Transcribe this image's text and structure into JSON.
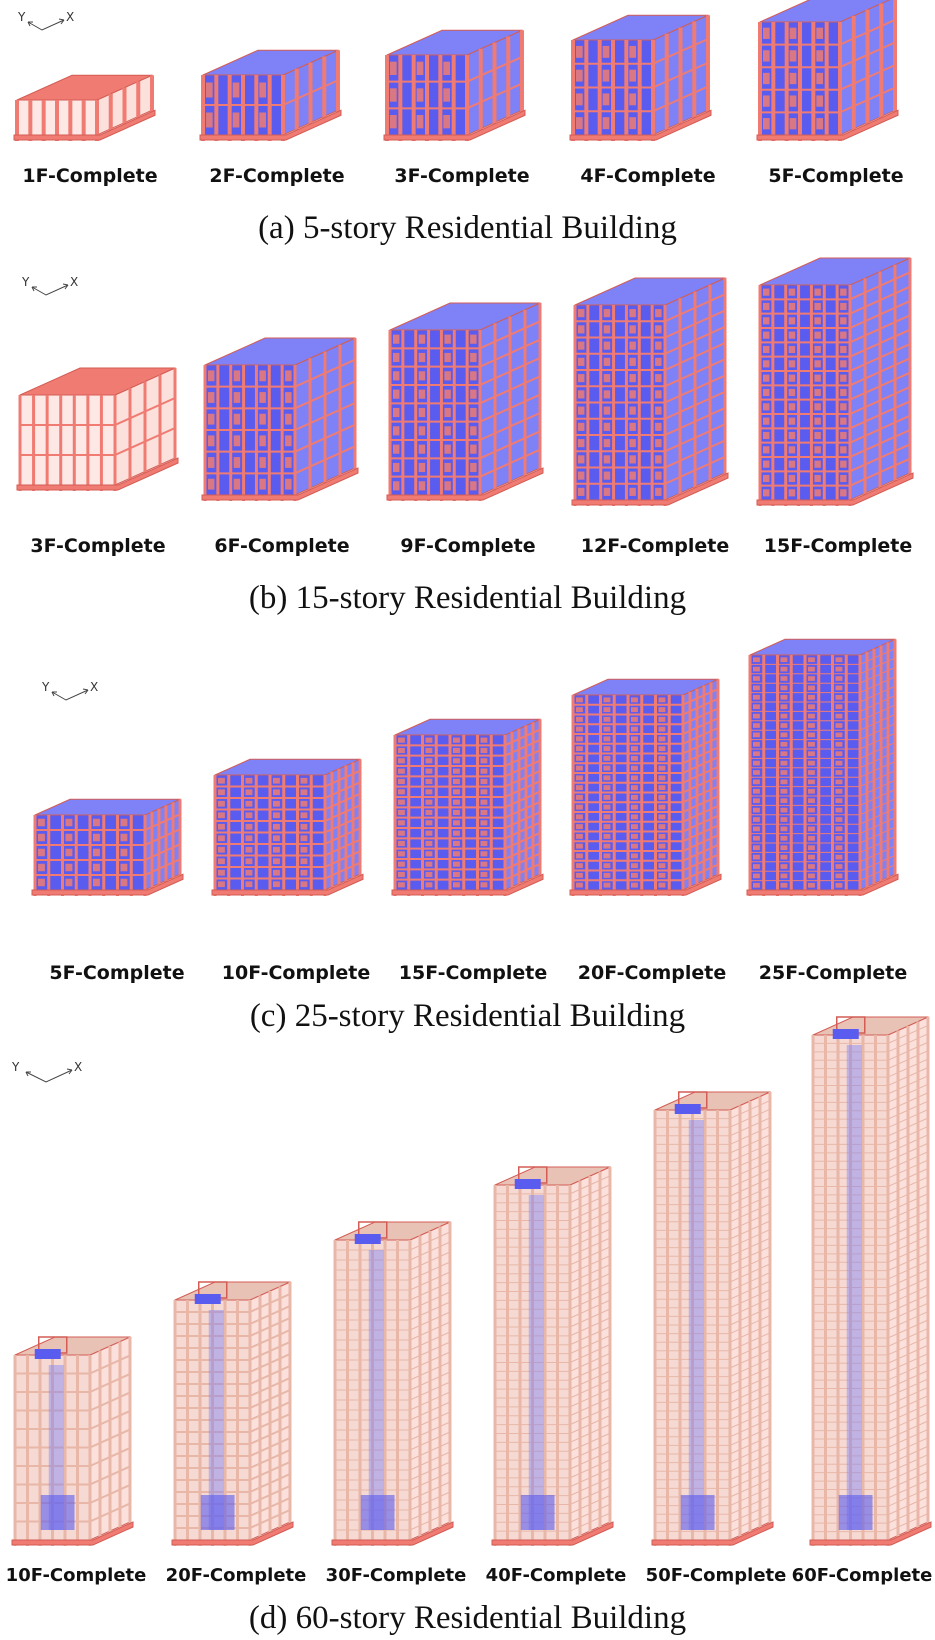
{
  "axes": {
    "y": "Y",
    "x": "X"
  },
  "panels": [
    {
      "caption": "(a) 5-story Residential Building",
      "stages": [
        "1F-Complete",
        "2F-Complete",
        "3F-Complete",
        "4F-Complete",
        "5F-Complete"
      ]
    },
    {
      "caption": "(b) 15-story Residential Building",
      "stages": [
        "3F-Complete",
        "6F-Complete",
        "9F-Complete",
        "12F-Complete",
        "15F-Complete"
      ]
    },
    {
      "caption": "(c) 25-story Residential Building",
      "stages": [
        "5F-Complete",
        "10F-Complete",
        "15F-Complete",
        "20F-Complete",
        "25F-Complete"
      ]
    },
    {
      "caption": "(d) 60-story Residential Building",
      "stages": [
        "10F-Complete",
        "20F-Complete",
        "30F-Complete",
        "40F-Complete",
        "50F-Complete",
        "60F-Complete"
      ]
    }
  ],
  "colors": {
    "wall": "#5a5cf0",
    "wall_light": "#7f82f7",
    "frame": "#f07b72",
    "frame_dark": "#d35d55",
    "frame_pale": "#e8b7a8"
  }
}
